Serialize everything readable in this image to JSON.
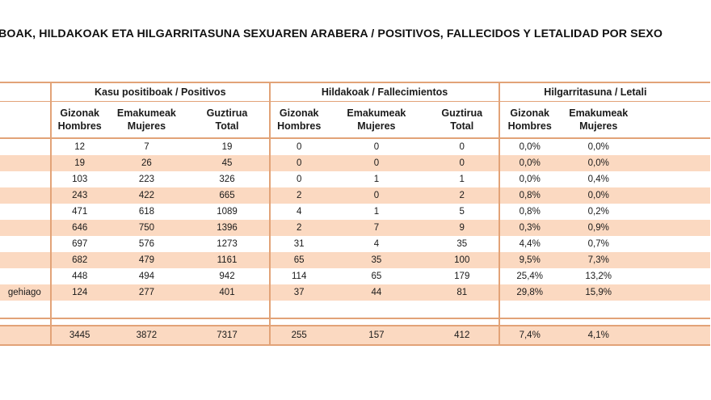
{
  "title": "BOAK, HILDAKOAK ETA HILGARRITASUNA SEXUAREN ARABERA / POSITIVOS, FALLECIDOS Y LETALIDAD POR SEXO",
  "groups": {
    "positives": "Kasu positiboak / Positivos",
    "deaths": "Hildakoak / Fallecimientos",
    "lethality": "Hilgarritasuna / Letali"
  },
  "subheaders": {
    "men": [
      "Gizonak",
      "Hombres"
    ],
    "women": [
      "Emakumeak",
      "Mujeres"
    ],
    "total": [
      "Guztirua",
      "Total"
    ]
  },
  "rows": [
    {
      "age": "",
      "pos": [
        "12",
        "7",
        "19"
      ],
      "dead": [
        "0",
        "0",
        "0"
      ],
      "leth": [
        "0,0%",
        "0,0%"
      ]
    },
    {
      "age": "",
      "pos": [
        "19",
        "26",
        "45"
      ],
      "dead": [
        "0",
        "0",
        "0"
      ],
      "leth": [
        "0,0%",
        "0,0%"
      ]
    },
    {
      "age": "",
      "pos": [
        "103",
        "223",
        "326"
      ],
      "dead": [
        "0",
        "1",
        "1"
      ],
      "leth": [
        "0,0%",
        "0,4%"
      ]
    },
    {
      "age": "",
      "pos": [
        "243",
        "422",
        "665"
      ],
      "dead": [
        "2",
        "0",
        "2"
      ],
      "leth": [
        "0,8%",
        "0,0%"
      ]
    },
    {
      "age": "",
      "pos": [
        "471",
        "618",
        "1089"
      ],
      "dead": [
        "4",
        "1",
        "5"
      ],
      "leth": [
        "0,8%",
        "0,2%"
      ]
    },
    {
      "age": "",
      "pos": [
        "646",
        "750",
        "1396"
      ],
      "dead": [
        "2",
        "7",
        "9"
      ],
      "leth": [
        "0,3%",
        "0,9%"
      ]
    },
    {
      "age": "",
      "pos": [
        "697",
        "576",
        "1273"
      ],
      "dead": [
        "31",
        "4",
        "35"
      ],
      "leth": [
        "4,4%",
        "0,7%"
      ]
    },
    {
      "age": "",
      "pos": [
        "682",
        "479",
        "1161"
      ],
      "dead": [
        "65",
        "35",
        "100"
      ],
      "leth": [
        "9,5%",
        "7,3%"
      ]
    },
    {
      "age": "",
      "pos": [
        "448",
        "494",
        "942"
      ],
      "dead": [
        "114",
        "65",
        "179"
      ],
      "leth": [
        "25,4%",
        "13,2%"
      ]
    },
    {
      "age": "gehiago",
      "pos": [
        "124",
        "277",
        "401"
      ],
      "dead": [
        "37",
        "44",
        "81"
      ],
      "leth": [
        "29,8%",
        "15,9%"
      ]
    }
  ],
  "totals": {
    "pos": [
      "3445",
      "3872",
      "7317"
    ],
    "dead": [
      "255",
      "157",
      "412"
    ],
    "leth": [
      "7,4%",
      "4,1%"
    ]
  },
  "colors": {
    "accent": "#e2a378",
    "band": "#fbd9c1"
  }
}
